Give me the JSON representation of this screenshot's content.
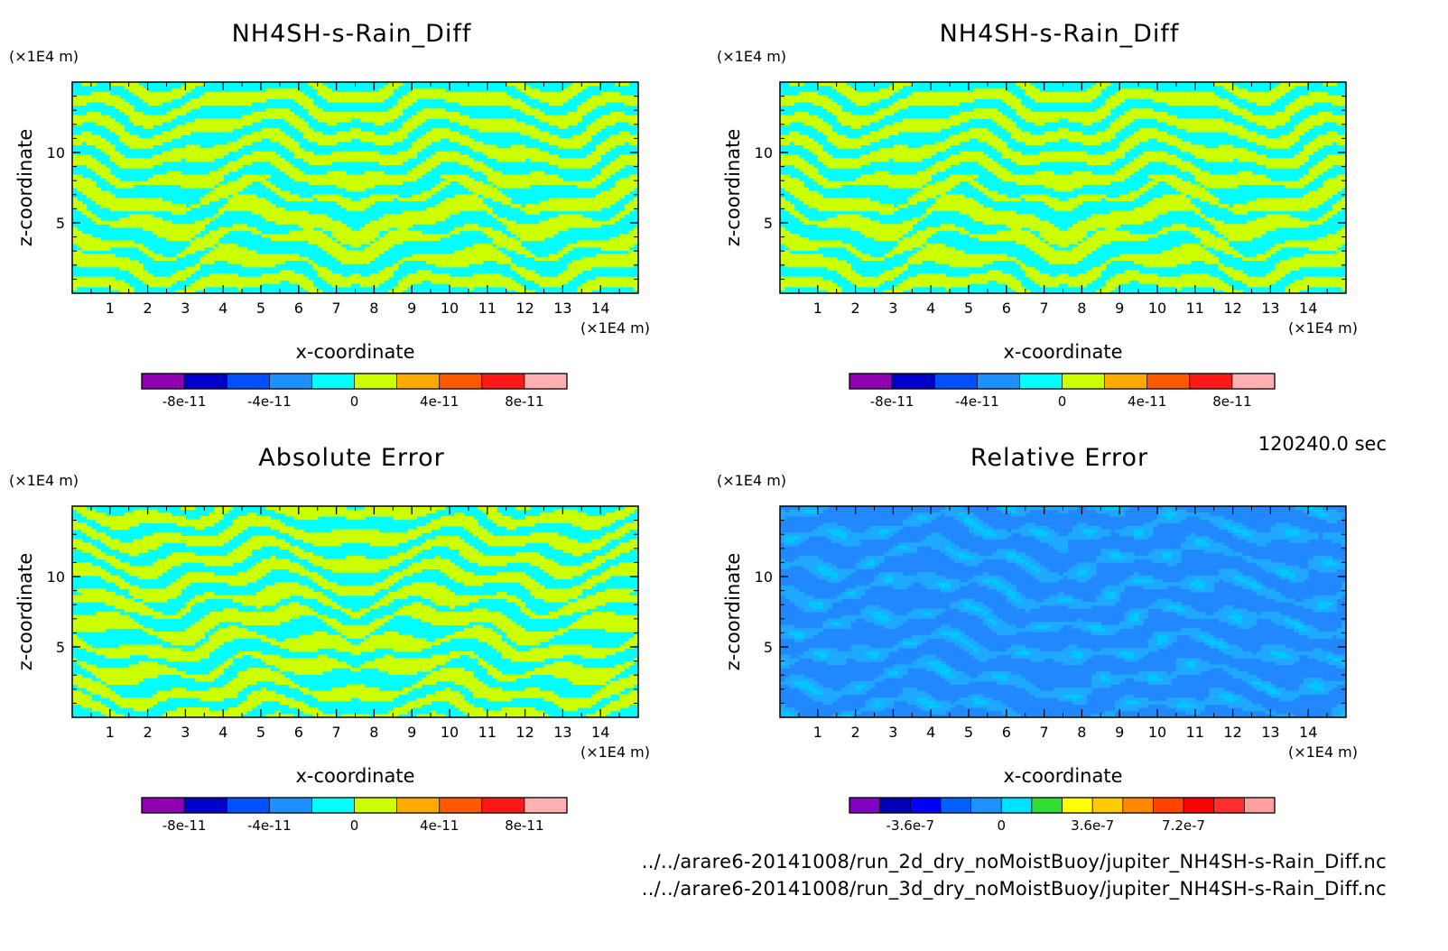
{
  "time_label": "120240.0 sec",
  "files": [
    "../../arare6-20141008/run_2d_dry_noMoistBuoy/jupiter_NH4SH-s-Rain_Diff.nc",
    "../../arare6-20141008/run_3d_dry_noMoistBuoy/jupiter_NH4SH-s-Rain_Diff.nc"
  ],
  "colors": {
    "cyan": "#00ffff",
    "yellow_green": "#ccff00",
    "blue": "#2288ff",
    "light_blue": "#1fa8ff"
  },
  "chart_data": [
    {
      "type": "heatmap",
      "title": "NH4SH-s-Rain_Diff",
      "xlabel": "x-coordinate",
      "ylabel": "z-coordinate",
      "x_unit": "(×1E4 m)",
      "y_unit": "(×1E4 m)",
      "xlim": [
        0,
        15
      ],
      "ylim": [
        0,
        15
      ],
      "x_ticks": [
        "1",
        "2",
        "3",
        "4",
        "5",
        "6",
        "7",
        "8",
        "9",
        "10",
        "11",
        "12",
        "13",
        "14"
      ],
      "y_ticks": [
        "5",
        "10"
      ],
      "pattern": "ab",
      "colorbar": {
        "colors": [
          "#8f00b0",
          "#0000c8",
          "#0050ff",
          "#1d8fff",
          "#00ffff",
          "#ccff00",
          "#ffaa00",
          "#ff5a00",
          "#ff1818",
          "#ffb0b0"
        ],
        "labels": [
          "-8e-11",
          "-4e-11",
          "0",
          "4e-11",
          "8e-11"
        ]
      }
    },
    {
      "type": "heatmap",
      "title": "NH4SH-s-Rain_Diff",
      "xlabel": "x-coordinate",
      "ylabel": "z-coordinate",
      "x_unit": "(×1E4 m)",
      "y_unit": "(×1E4 m)",
      "xlim": [
        0,
        15
      ],
      "ylim": [
        0,
        15
      ],
      "x_ticks": [
        "1",
        "2",
        "3",
        "4",
        "5",
        "6",
        "7",
        "8",
        "9",
        "10",
        "11",
        "12",
        "13",
        "14"
      ],
      "y_ticks": [
        "5",
        "10"
      ],
      "pattern": "ab",
      "colorbar": {
        "colors": [
          "#8f00b0",
          "#0000c8",
          "#0050ff",
          "#1d8fff",
          "#00ffff",
          "#ccff00",
          "#ffaa00",
          "#ff5a00",
          "#ff1818",
          "#ffb0b0"
        ],
        "labels": [
          "-8e-11",
          "-4e-11",
          "0",
          "4e-11",
          "8e-11"
        ]
      }
    },
    {
      "type": "heatmap",
      "title": "Absolute Error",
      "xlabel": "x-coordinate",
      "ylabel": "z-coordinate",
      "x_unit": "(×1E4 m)",
      "y_unit": "(×1E4 m)",
      "xlim": [
        0,
        15
      ],
      "ylim": [
        0,
        15
      ],
      "x_ticks": [
        "1",
        "2",
        "3",
        "4",
        "5",
        "6",
        "7",
        "8",
        "9",
        "10",
        "11",
        "12",
        "13",
        "14"
      ],
      "y_ticks": [
        "5",
        "10"
      ],
      "pattern": "abs",
      "colorbar": {
        "colors": [
          "#8f00b0",
          "#0000c8",
          "#0050ff",
          "#1d8fff",
          "#00ffff",
          "#ccff00",
          "#ffaa00",
          "#ff5a00",
          "#ff1818",
          "#ffb0b0"
        ],
        "labels": [
          "-8e-11",
          "-4e-11",
          "0",
          "4e-11",
          "8e-11"
        ]
      }
    },
    {
      "type": "heatmap",
      "title": "Relative Error",
      "xlabel": "x-coordinate",
      "ylabel": "z-coordinate",
      "x_unit": "(×1E4 m)",
      "y_unit": "(×1E4 m)",
      "xlim": [
        0,
        15
      ],
      "ylim": [
        0,
        15
      ],
      "x_ticks": [
        "1",
        "2",
        "3",
        "4",
        "5",
        "6",
        "7",
        "8",
        "9",
        "10",
        "11",
        "12",
        "13",
        "14"
      ],
      "y_ticks": [
        "5",
        "10"
      ],
      "pattern": "rel",
      "colorbar": {
        "colors": [
          "#8000c0",
          "#0000b4",
          "#0000ff",
          "#0060ff",
          "#1e90ff",
          "#00e0ff",
          "#33dd33",
          "#ffff00",
          "#ffcc00",
          "#ff8800",
          "#ff4400",
          "#ff0000",
          "#ff3030",
          "#ffa0a0"
        ],
        "labels": [
          "-3.6e-7",
          "0",
          "3.6e-7",
          "7.2e-7"
        ]
      }
    }
  ]
}
